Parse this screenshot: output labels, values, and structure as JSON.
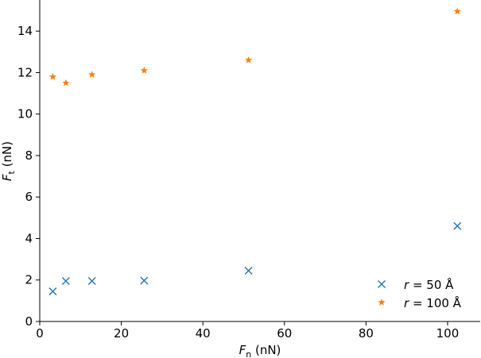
{
  "chart_data": {
    "type": "scatter",
    "xlabel": {
      "symbol": "F",
      "sub": "n",
      "unit": " (nN)"
    },
    "ylabel": {
      "symbol": "F",
      "sub": "t",
      "unit": " (nN)"
    },
    "xlim": [
      0,
      108
    ],
    "ylim": [
      0,
      15.5
    ],
    "xticks": [
      0,
      20,
      40,
      60,
      80,
      100
    ],
    "yticks": [
      0,
      2,
      4,
      6,
      8,
      10,
      12,
      14
    ],
    "grid": false,
    "legend_position": "lower-right",
    "series": [
      {
        "name": "r = 50 Å",
        "legend": {
          "var": "r",
          "rest": " = 50 Å"
        },
        "marker": "x",
        "color": "#1f77b4",
        "x": [
          3.2,
          6.4,
          12.8,
          25.6,
          51.2,
          102.4
        ],
        "y": [
          1.45,
          1.95,
          1.95,
          1.97,
          2.45,
          4.6
        ]
      },
      {
        "name": "r = 100 Å",
        "legend": {
          "var": "r",
          "rest": " = 100 Å"
        },
        "marker": "star",
        "color": "#ff7f0e",
        "x": [
          3.2,
          6.4,
          12.8,
          25.6,
          51.2,
          102.4
        ],
        "y": [
          11.8,
          11.5,
          11.9,
          12.1,
          12.6,
          14.95
        ]
      }
    ]
  }
}
